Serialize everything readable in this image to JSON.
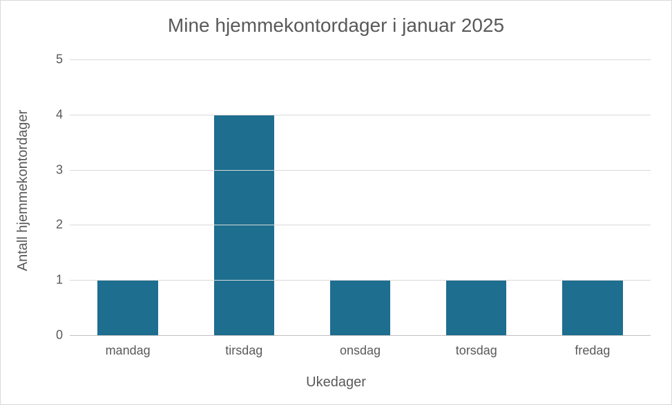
{
  "chart": {
    "type": "bar",
    "title": "Mine hjemmekontordager i januar 2025",
    "title_fontsize": 28,
    "xlabel": "Ukedager",
    "ylabel": "Antall hjemmekontordager",
    "label_fontsize": 20,
    "tick_fontsize": 18,
    "categories": [
      "mandag",
      "tirsdag",
      "onsdag",
      "torsdag",
      "fredag"
    ],
    "values": [
      1,
      4,
      1,
      1,
      1
    ],
    "bar_colors": [
      "#1d6e8f",
      "#1d6e8f",
      "#1d6e8f",
      "#1d6e8f",
      "#1d6e8f"
    ],
    "bar_width": 0.52,
    "ylim": [
      0,
      5
    ],
    "ytick_step": 1,
    "yticks": [
      0,
      1,
      2,
      3,
      4,
      5
    ],
    "grid_color": "#d9d9d9",
    "axis_color": "#bfbfbf",
    "background_color": "#ffffff",
    "text_color": "#595959",
    "border_color": "#d9d9d9"
  }
}
